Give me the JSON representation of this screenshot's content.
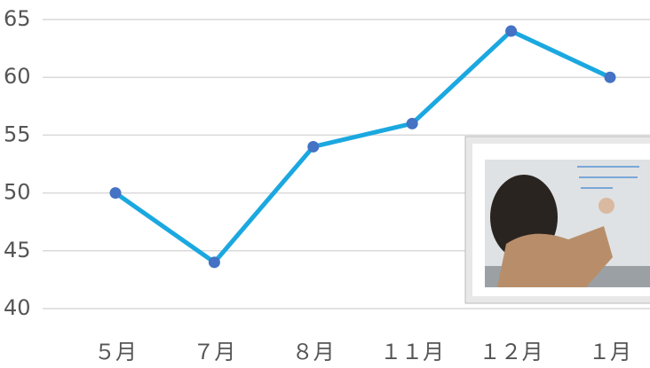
{
  "chart_data": {
    "type": "line",
    "categories": [
      "５月",
      "７月",
      "８月",
      "１１月",
      "１２月",
      "１月"
    ],
    "values": [
      50,
      44,
      54,
      56,
      64,
      60
    ],
    "color": "#1ba8e0",
    "marker_color": "#4472c4",
    "ylim": [
      40,
      65
    ],
    "yticks": [
      40,
      45,
      50,
      55,
      60,
      65
    ],
    "grid": true
  }
}
